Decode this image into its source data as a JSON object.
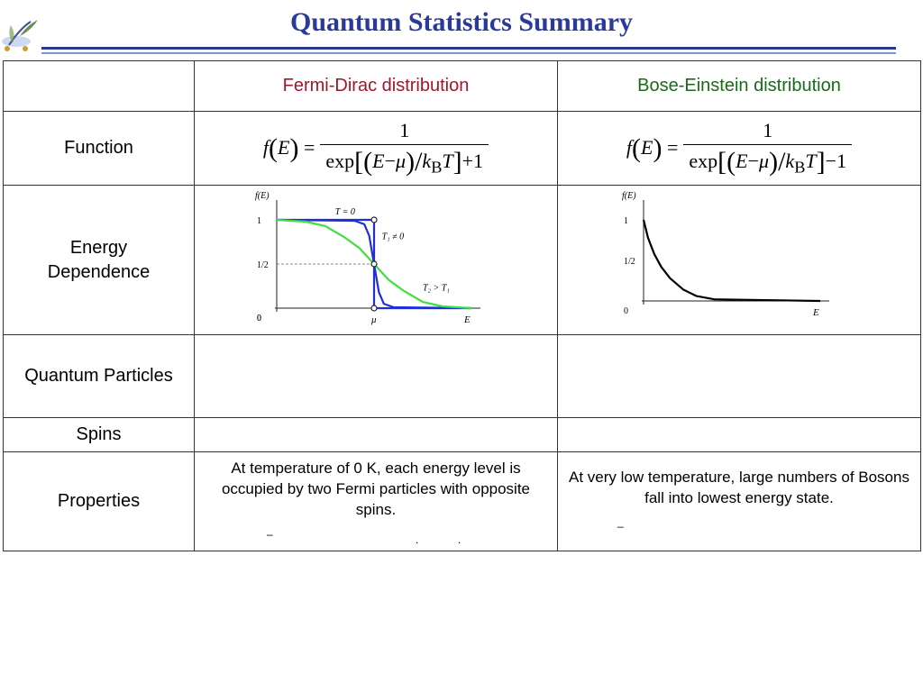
{
  "title": "Quantum Statistics Summary",
  "table": {
    "headers": [
      "",
      "Fermi-Dirac distribution",
      "Bose-Einstein distribution"
    ],
    "rows": {
      "function": {
        "label": "Function"
      },
      "energy": {
        "label_line1": "Energy",
        "label_line2": "Dependence"
      },
      "particles": {
        "label": "Quantum Particles",
        "fd": "",
        "be": ""
      },
      "spins": {
        "label": "Spins",
        "fd": "",
        "be": ""
      },
      "properties": {
        "label": "Properties",
        "fd": "At temperature of 0 K, each energy level is occupied by two Fermi particles with opposite spins.",
        "be": "At very low temperature, large numbers of Bosons fall into lowest energy state."
      }
    }
  },
  "formulas": {
    "fd": {
      "lhs_f": "f",
      "lhs_E": "E",
      "numerator": "1",
      "exp": "exp",
      "E": "E",
      "minus": "−",
      "mu": "μ",
      "k": "k",
      "B": "B",
      "T": "T",
      "tail": "+1"
    },
    "be": {
      "lhs_f": "f",
      "lhs_E": "E",
      "numerator": "1",
      "exp": "exp",
      "E": "E",
      "minus": "−",
      "mu": "μ",
      "k": "k",
      "B": "B",
      "T": "T",
      "tail": "−1"
    }
  },
  "chart_data": [
    {
      "type": "line",
      "ylabel": "f(E)",
      "xlabel": "E",
      "yticks": [
        "0",
        "1/2",
        "1"
      ],
      "xticks": [
        "0",
        "μ"
      ],
      "ylim": [
        0,
        1
      ],
      "series": [
        {
          "name": "T = 0",
          "color": "#1f2fd6",
          "x": [
            0,
            1,
            1,
            2
          ],
          "y": [
            1,
            1,
            0,
            0
          ]
        },
        {
          "name": "T₁ ≠ 0",
          "color": "#1f2fd6",
          "x": [
            0.0,
            0.8,
            0.9,
            0.95,
            1.0,
            1.05,
            1.1,
            1.2,
            2.0
          ],
          "y": [
            1,
            0.99,
            0.95,
            0.82,
            0.5,
            0.18,
            0.05,
            0.01,
            0
          ]
        },
        {
          "name": "T₂ > T₁",
          "color": "#3ee03e",
          "x": [
            0.0,
            0.3,
            0.5,
            0.7,
            0.85,
            1.0,
            1.15,
            1.3,
            1.5,
            1.7,
            2.0
          ],
          "y": [
            1,
            0.98,
            0.93,
            0.8,
            0.68,
            0.5,
            0.32,
            0.2,
            0.07,
            0.02,
            0
          ]
        }
      ],
      "annotations": [
        "T = 0",
        "T₁ ≠ 0",
        "T₂ > T₁"
      ],
      "guide_y": "1/2"
    },
    {
      "type": "line",
      "ylabel": "f(E)",
      "xlabel": "E",
      "yticks": [
        "0",
        "1/2",
        "1"
      ],
      "ylim": [
        0,
        1
      ],
      "series": [
        {
          "name": "",
          "color": "#000000",
          "x": [
            0.0,
            0.05,
            0.12,
            0.2,
            0.3,
            0.45,
            0.6,
            0.8,
            2.0
          ],
          "y": [
            1.0,
            0.78,
            0.58,
            0.42,
            0.28,
            0.14,
            0.06,
            0.02,
            0
          ]
        }
      ]
    }
  ],
  "colors": {
    "title": "#2a3a9a",
    "fd_header": "#a0162a",
    "be_header": "#1a6a1a",
    "rule": "#253a8f"
  },
  "icons": {
    "logo": "leaf-logo-icon"
  }
}
